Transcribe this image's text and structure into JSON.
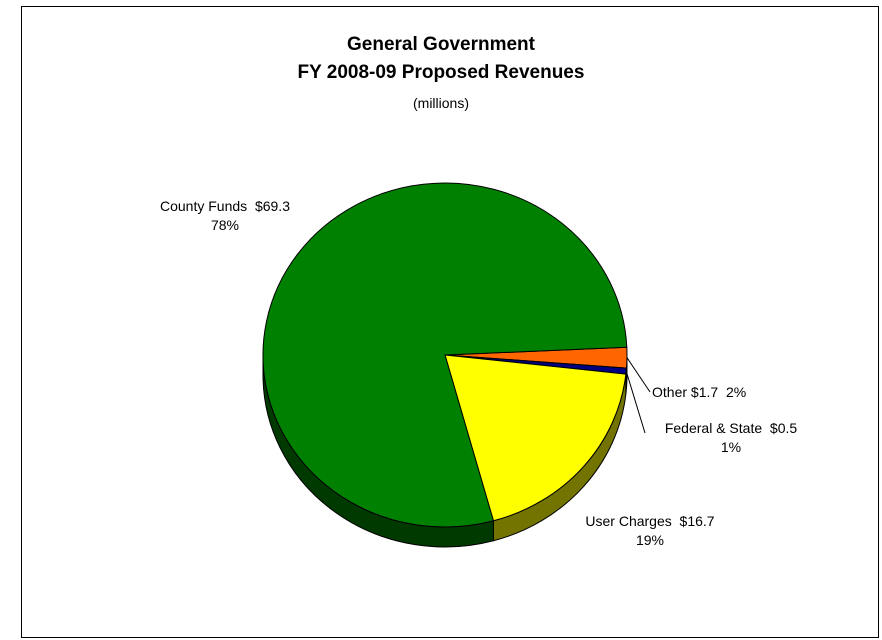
{
  "chart_data": {
    "type": "pie",
    "title": "General Government",
    "subtitle": "FY 2008-09 Proposed Revenues",
    "units_note": "(millions)",
    "slices": [
      {
        "name": "County Funds",
        "value": 69.3,
        "value_label": "$69.3",
        "percent_label": "78%",
        "color": "#008000"
      },
      {
        "name": "User Charges",
        "value": 16.7,
        "value_label": "$16.7",
        "percent_label": "19%",
        "color": "#FFFF00"
      },
      {
        "name": "Federal & State",
        "value": 0.5,
        "value_label": "$0.5",
        "percent_label": "1%",
        "color": "#000080"
      },
      {
        "name": "Other",
        "value": 1.7,
        "value_label": "$1.7",
        "percent_label": "2%",
        "color": "#FF6600"
      }
    ],
    "legend": "none"
  }
}
